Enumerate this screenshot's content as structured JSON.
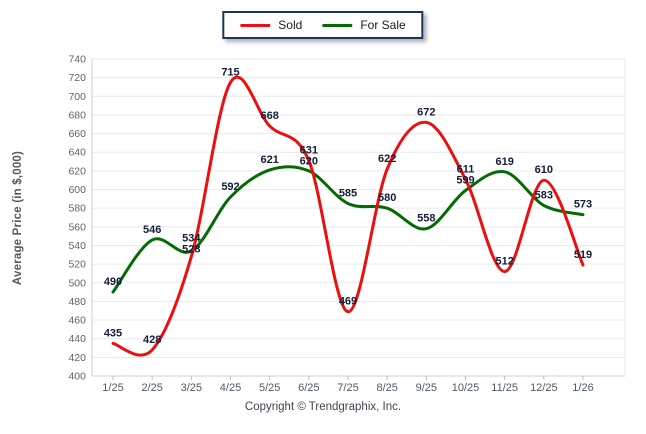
{
  "legend": {
    "items": [
      {
        "label": "Sold",
        "color": "#ed0e0e"
      },
      {
        "label": "For Sale",
        "color": "#046b04"
      }
    ]
  },
  "footer": "Copyright © Trendgraphix, Inc.",
  "chart_data": {
    "type": "line",
    "title": "",
    "xlabel": "",
    "ylabel": "Average Price (in $,000)",
    "categories": [
      "1/25",
      "2/25",
      "3/25",
      "4/25",
      "5/25",
      "6/25",
      "7/25",
      "8/25",
      "9/25",
      "10/25",
      "11/25",
      "12/25",
      "1/26"
    ],
    "series": [
      {
        "name": "Sold",
        "color": "#ed0e0e",
        "values": [
          435,
          428,
          528,
          715,
          668,
          631,
          469,
          622,
          672,
          611,
          512,
          610,
          519
        ]
      },
      {
        "name": "For Sale",
        "color": "#046b04",
        "values": [
          490,
          546,
          534,
          592,
          621,
          620,
          585,
          580,
          558,
          599,
          619,
          583,
          573
        ]
      }
    ],
    "ylim": [
      400,
      740
    ],
    "ytick_step": 20,
    "grid": true,
    "legend_position": "top-center",
    "data_labels": true,
    "colors": {
      "grid_line": "#e7eaee",
      "axis_line": "#c9cfd7",
      "tick_mark": "#b7bec8",
      "y_tick_text": "#5b6673",
      "x_tick_text": "#4e5a68",
      "value_label_text": "#141e38"
    }
  }
}
